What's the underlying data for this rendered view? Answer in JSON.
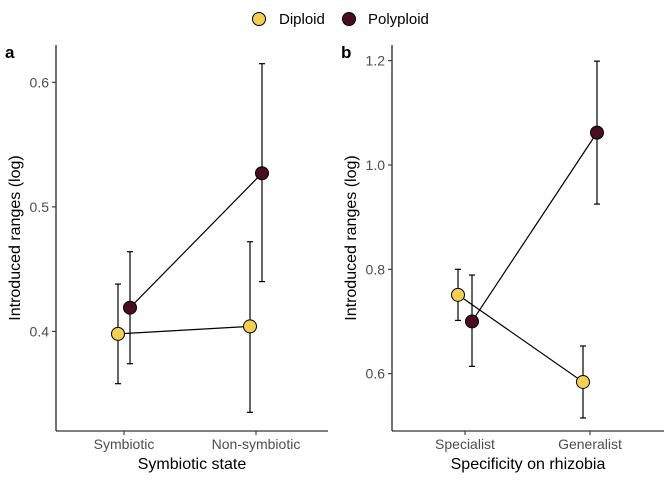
{
  "legend": {
    "position": "top",
    "entries": [
      {
        "label": "Diploid",
        "color": "#F5D04E"
      },
      {
        "label": "Polyploid",
        "color": "#4A0D1F"
      }
    ]
  },
  "chart_data": [
    {
      "panel_label": "a",
      "type": "scatter",
      "title": "",
      "xlabel": "Symbiotic state",
      "ylabel": "Introduced ranges (log)",
      "categories": [
        "Symbiotic",
        "Non-symbiotic"
      ],
      "ylim": [
        0.32,
        0.63
      ],
      "yticks": [
        0.4,
        0.5,
        0.6
      ],
      "ytick_labels": [
        "0.4",
        "0.5",
        "0.6"
      ],
      "grid": false,
      "series": [
        {
          "name": "Diploid",
          "color": "#F5D04E",
          "values": [
            0.398,
            0.404
          ],
          "lower": [
            0.358,
            0.335
          ],
          "upper": [
            0.438,
            0.472
          ]
        },
        {
          "name": "Polyploid",
          "color": "#4A0D1F",
          "values": [
            0.419,
            0.527
          ],
          "lower": [
            0.374,
            0.44
          ],
          "upper": [
            0.464,
            0.615
          ]
        }
      ]
    },
    {
      "panel_label": "b",
      "type": "scatter",
      "title": "",
      "xlabel": "Specificity on rhizobia",
      "ylabel": "Introduced ranges (log)",
      "categories": [
        "Specialist",
        "Generalist"
      ],
      "ylim": [
        0.49,
        1.23
      ],
      "yticks": [
        0.6,
        0.8,
        1.0,
        1.2
      ],
      "ytick_labels": [
        "0.6",
        "0.8",
        "1.0",
        "1.2"
      ],
      "grid": false,
      "series": [
        {
          "name": "Diploid",
          "color": "#F5D04E",
          "values": [
            0.751,
            0.584
          ],
          "lower": [
            0.702,
            0.515
          ],
          "upper": [
            0.8,
            0.653
          ]
        },
        {
          "name": "Polyploid",
          "color": "#4A0D1F",
          "values": [
            0.7,
            1.062
          ],
          "lower": [
            0.614,
            0.925
          ],
          "upper": [
            0.789,
            1.199
          ]
        }
      ]
    }
  ]
}
